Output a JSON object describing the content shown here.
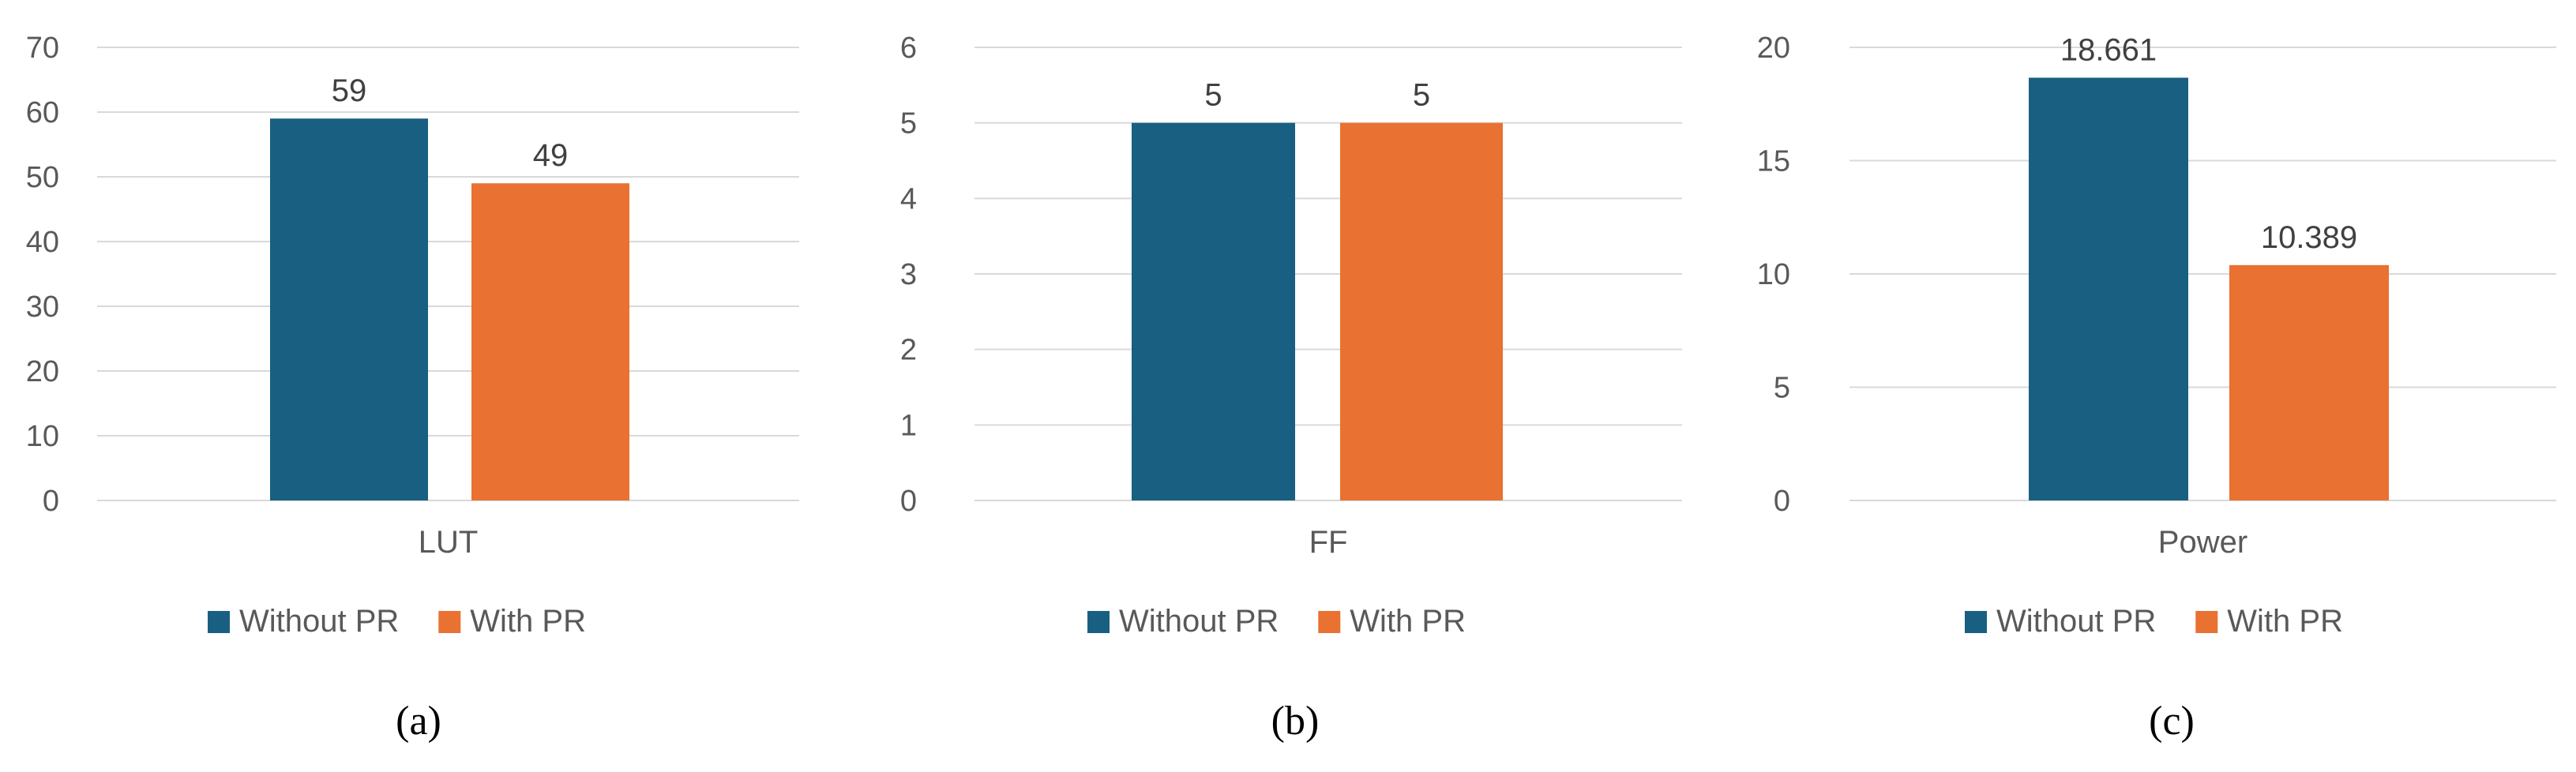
{
  "colors": {
    "without_pr": "#185f82",
    "with_pr": "#e97132",
    "grid": "#d9d9d9",
    "text": "#595959"
  },
  "legend": [
    "Without PR",
    "With PR"
  ],
  "chart_data": [
    {
      "type": "bar",
      "caption": "(a)",
      "categories": [
        "LUT"
      ],
      "series": [
        {
          "name": "Without PR",
          "values": [
            59
          ]
        },
        {
          "name": "With PR",
          "values": [
            49
          ]
        }
      ],
      "data_labels": [
        "59",
        "49"
      ],
      "yticks": [
        "0",
        "10",
        "20",
        "30",
        "40",
        "50",
        "60",
        "70"
      ],
      "ylim": [
        0,
        70
      ],
      "grid": true,
      "legend_position": "bottom"
    },
    {
      "type": "bar",
      "caption": "(b)",
      "categories": [
        "FF"
      ],
      "series": [
        {
          "name": "Without PR",
          "values": [
            5
          ]
        },
        {
          "name": "With PR",
          "values": [
            5
          ]
        }
      ],
      "data_labels": [
        "5",
        "5"
      ],
      "yticks": [
        "0",
        "1",
        "2",
        "3",
        "4",
        "5",
        "6"
      ],
      "ylim": [
        0,
        6
      ],
      "grid": true,
      "legend_position": "bottom"
    },
    {
      "type": "bar",
      "caption": "(c)",
      "categories": [
        "Power"
      ],
      "series": [
        {
          "name": "Without PR",
          "values": [
            18.661
          ]
        },
        {
          "name": "With PR",
          "values": [
            10.389
          ]
        }
      ],
      "data_labels": [
        "18.661",
        "10.389"
      ],
      "yticks": [
        "0",
        "5",
        "10",
        "15",
        "20"
      ],
      "ylim": [
        0,
        20
      ],
      "grid": true,
      "legend_position": "bottom"
    }
  ]
}
